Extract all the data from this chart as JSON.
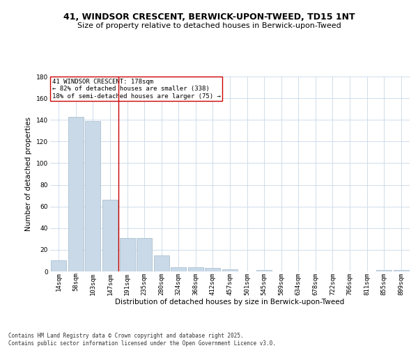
{
  "title1": "41, WINDSOR CRESCENT, BERWICK-UPON-TWEED, TD15 1NT",
  "title2": "Size of property relative to detached houses in Berwick-upon-Tweed",
  "xlabel": "Distribution of detached houses by size in Berwick-upon-Tweed",
  "ylabel": "Number of detached properties",
  "categories": [
    "14sqm",
    "58sqm",
    "103sqm",
    "147sqm",
    "191sqm",
    "235sqm",
    "280sqm",
    "324sqm",
    "368sqm",
    "412sqm",
    "457sqm",
    "501sqm",
    "545sqm",
    "589sqm",
    "634sqm",
    "678sqm",
    "722sqm",
    "766sqm",
    "811sqm",
    "855sqm",
    "899sqm"
  ],
  "values": [
    10,
    143,
    139,
    66,
    31,
    31,
    15,
    4,
    4,
    3,
    2,
    0,
    1,
    0,
    0,
    0,
    0,
    0,
    0,
    1,
    1
  ],
  "bar_color": "#c9d9e8",
  "bar_edge_color": "#a0b8cc",
  "vline_x": 3.5,
  "vline_color": "#cc0000",
  "annotation_text": "41 WINDSOR CRESCENT: 178sqm\n← 82% of detached houses are smaller (338)\n18% of semi-detached houses are larger (75) →",
  "annotation_box_color": "#ffffff",
  "annotation_box_edge": "#cc0000",
  "ylim": [
    0,
    180
  ],
  "yticks": [
    0,
    20,
    40,
    60,
    80,
    100,
    120,
    140,
    160,
    180
  ],
  "footer": "Contains HM Land Registry data © Crown copyright and database right 2025.\nContains public sector information licensed under the Open Government Licence v3.0.",
  "bg_color": "#ffffff",
  "grid_color": "#c8d8e8",
  "title1_fontsize": 9,
  "title2_fontsize": 8,
  "xlabel_fontsize": 7.5,
  "ylabel_fontsize": 7.5,
  "annotation_fontsize": 6.5,
  "tick_fontsize": 6.5,
  "footer_fontsize": 5.5
}
